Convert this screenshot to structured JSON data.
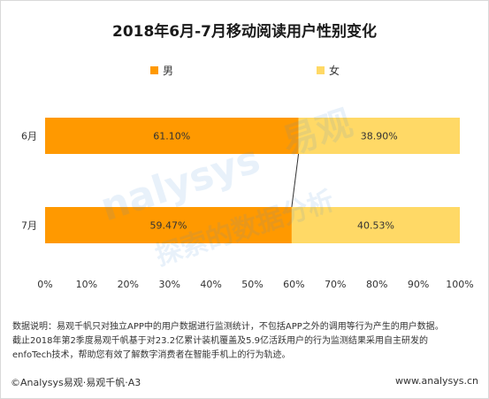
{
  "title": "2018年6月-7月移动阅读用户性别变化",
  "colors": {
    "male": "#ff9900",
    "female": "#ffd966",
    "connector": "#333333"
  },
  "chart_data": {
    "type": "bar",
    "orientation": "horizontal",
    "stacked": true,
    "categories": [
      "6月",
      "7月"
    ],
    "series": [
      {
        "name": "男",
        "values": [
          61.1,
          59.47
        ],
        "labels": [
          "61.10%",
          "59.47%"
        ]
      },
      {
        "name": "女",
        "values": [
          38.9,
          40.53
        ],
        "labels": [
          "38.90%",
          "40.53%"
        ]
      }
    ],
    "xlim": [
      0,
      100
    ],
    "xticks": [
      "0%",
      "10%",
      "20%",
      "30%",
      "40%",
      "50%",
      "60%",
      "70%",
      "80%",
      "90%",
      "100%"
    ],
    "legend": "top",
    "grid": false
  },
  "note": {
    "line1": "数据说明：易观千帆只对独立APP中的用户数据进行监测统计，不包括APP之外的调用等行为产生的用户数据。",
    "line2": "截止2018年第2季度易观千帆基于对23.2亿累计装机覆盖及5.9亿活跃用户的行为监测结果采用自主研发的",
    "line3": "enfoTech技术，帮助您有效了解数字消费者在智能手机上的行为轨迹。"
  },
  "footer": {
    "left": "©Analysys易观·易观千帆·A3",
    "right": "www.analysys.cn"
  }
}
